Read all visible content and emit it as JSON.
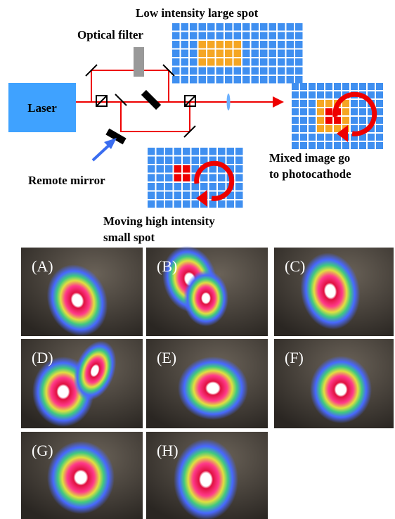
{
  "diagram": {
    "top_label": "Low intensity large spot",
    "filter_label": "Optical filter",
    "laser_label": "Laser",
    "mirror_label": "Remote mirror",
    "mixed_label": [
      "Mixed image go",
      "to photocathode"
    ],
    "moving_label": [
      "Moving high intensity",
      "small spot"
    ]
  },
  "panels": [
    "(A)",
    "(B)",
    "(C)",
    "(D)",
    "(E)",
    "(F)",
    "(G)",
    "(H)"
  ]
}
